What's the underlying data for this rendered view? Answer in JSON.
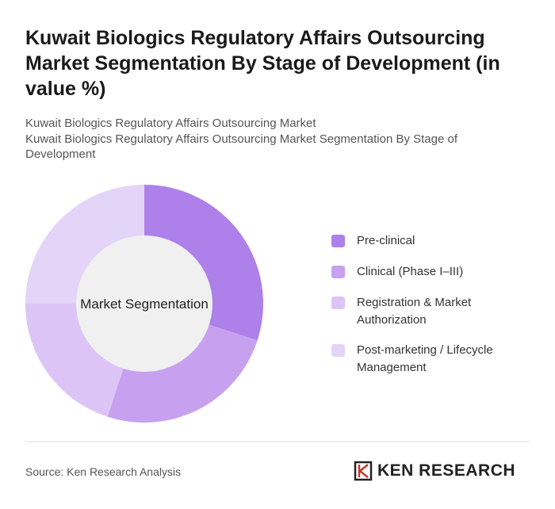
{
  "chart_data": {
    "type": "donut",
    "title": "Kuwait Biologics Regulatory Affairs Outsourcing Market Segmentation By Stage of Development (in value %)",
    "subtitles": [
      "Kuwait Biologics Regulatory Affairs Outsourcing Market",
      "Kuwait Biologics Regulatory Affairs Outsourcing Market Segmentation By Stage of Development"
    ],
    "center_label": "Market Segmentation",
    "categories": [
      "Pre-clinical",
      "Clinical (Phase I–III)",
      "Registration & Market Authorization",
      "Post-marketing / Lifecycle Management"
    ],
    "values": [
      30,
      25,
      20,
      25
    ],
    "colors": [
      "#ae80ea",
      "#c7a1f0",
      "#dcc5f6",
      "#e4d4f8"
    ]
  },
  "footer": {
    "source": "Source: Ken Research Analysis",
    "logo": "KEN RESEARCH"
  }
}
